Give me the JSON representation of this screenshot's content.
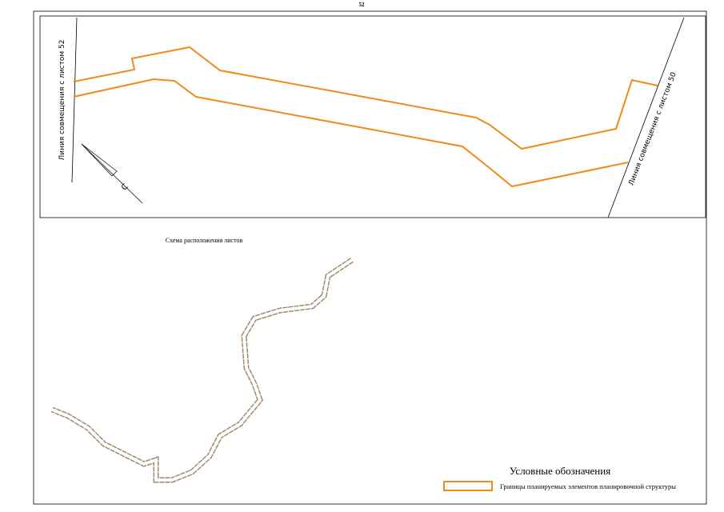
{
  "page_number": "52",
  "map": {
    "left_match_line": "Линия совмещения с листом 52",
    "right_match_line": "Линия совмещения с листом 50",
    "north_letter": "С"
  },
  "scheme": {
    "title": "Схема расположения листов"
  },
  "legend": {
    "title": "Условные обозначения",
    "items": [
      {
        "label": "Границы планируемых элементов планировочной структуры"
      }
    ]
  }
}
